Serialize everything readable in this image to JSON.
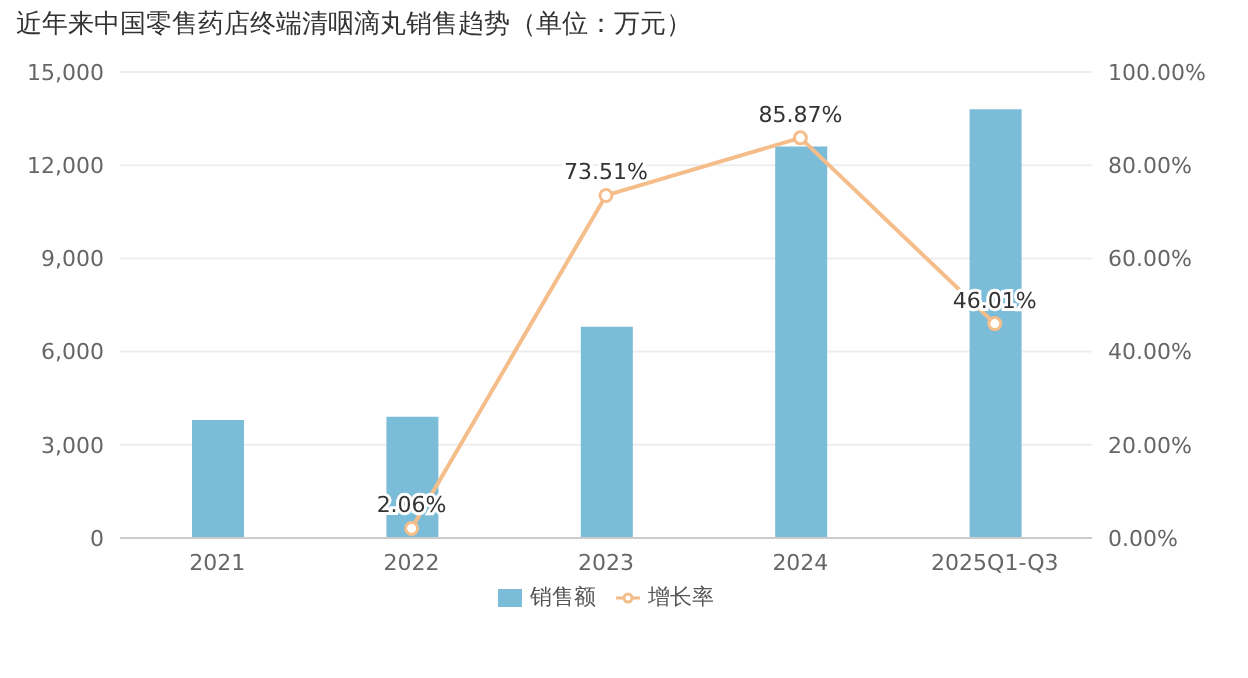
{
  "chart_data": {
    "type": "bar",
    "title": "近年来中国零售药店终端清咽滴丸销售趋势（单位：万元）",
    "categories": [
      "2021",
      "2022",
      "2023",
      "2024",
      "2025Q1-Q3"
    ],
    "series": [
      {
        "name": "销售额",
        "color": "#7bbcd9",
        "values": [
          3800,
          3900,
          6800,
          12600,
          13800
        ]
      },
      {
        "name": "增长率",
        "type": "line",
        "axis": "y2",
        "color": "#f4bd8a",
        "marker": "circle",
        "values": [
          null,
          2.06,
          73.51,
          85.87,
          46.01
        ],
        "value_labels": [
          null,
          "2.06%",
          "73.51%",
          "85.87%",
          "46.01%"
        ]
      }
    ],
    "ylim": [
      0,
      15000
    ],
    "yticks": [
      {
        "value": 0,
        "label": "0"
      },
      {
        "value": 3000,
        "label": "3,000"
      },
      {
        "value": 6000,
        "label": "6,000"
      },
      {
        "value": 9000,
        "label": "9,000"
      },
      {
        "value": 12000,
        "label": "12,000"
      },
      {
        "value": 15000,
        "label": "15,000"
      }
    ],
    "y2lim": [
      0,
      100
    ],
    "y2ticks": [
      {
        "value": 0,
        "label": "0.00%"
      },
      {
        "value": 20,
        "label": "20.00%"
      },
      {
        "value": 40,
        "label": "40.00%"
      },
      {
        "value": 60,
        "label": "60.00%"
      },
      {
        "value": 80,
        "label": "80.00%"
      },
      {
        "value": 100,
        "label": "100.00%"
      }
    ],
    "grid": "y",
    "legend": "bottom"
  }
}
